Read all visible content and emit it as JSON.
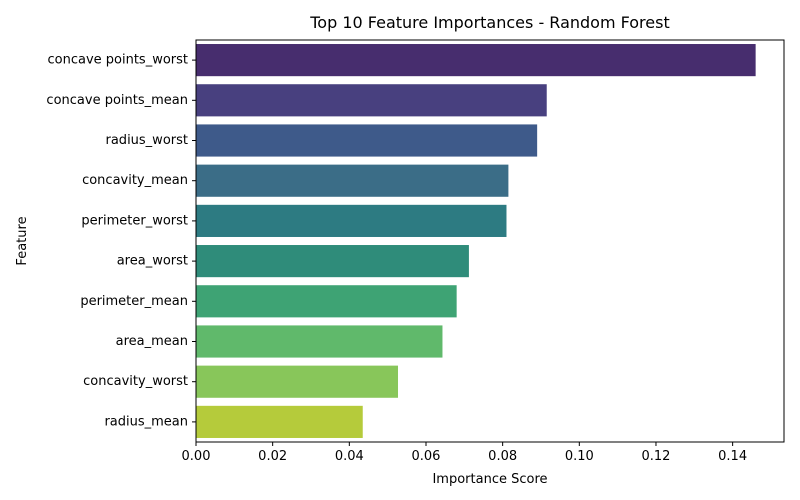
{
  "chart_data": {
    "type": "bar",
    "orientation": "horizontal",
    "title": "Top 10 Feature Importances - Random Forest",
    "xlabel": "Importance Score",
    "ylabel": "Feature",
    "categories": [
      "concave points_worst",
      "concave points_mean",
      "radius_worst",
      "concavity_mean",
      "perimeter_worst",
      "area_worst",
      "perimeter_mean",
      "area_mean",
      "concavity_worst",
      "radius_mean"
    ],
    "values": [
      0.146,
      0.0915,
      0.089,
      0.0815,
      0.081,
      0.0712,
      0.068,
      0.0643,
      0.0527,
      0.0435
    ],
    "colors": [
      "#472d6e",
      "#48407f",
      "#3e5a8a",
      "#3b6d87",
      "#2d7b82",
      "#2f8c7a",
      "#3ea374",
      "#60b96b",
      "#88c65a",
      "#b5cb3b"
    ],
    "xlim": [
      0,
      0.1534
    ],
    "xticks": [
      0.0,
      0.02,
      0.04,
      0.06,
      0.08,
      0.1,
      0.12,
      0.14
    ],
    "xtick_labels": [
      "0.00",
      "0.02",
      "0.04",
      "0.06",
      "0.08",
      "0.10",
      "0.12",
      "0.14"
    ],
    "grid": false,
    "legend": "none"
  }
}
